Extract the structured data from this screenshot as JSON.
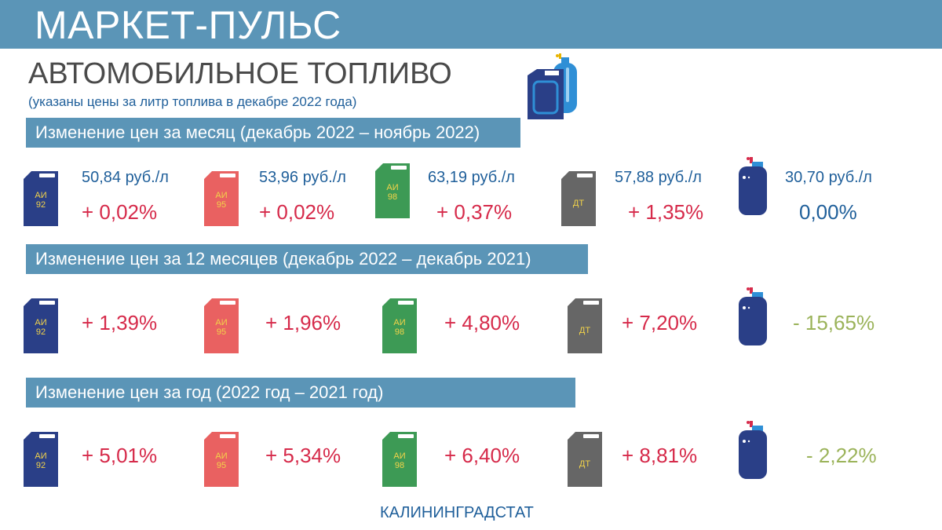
{
  "header": {
    "title": "МАРКЕТ-ПУЛЬС",
    "subtitle": "АВТОМОБИЛЬНОЕ ТОПЛИВО",
    "note": "(указаны цены за литр топлива в декабре 2022 года)"
  },
  "fuels": [
    {
      "label_top": "АИ",
      "label_bottom": "92",
      "color": "#2a3f87"
    },
    {
      "label_top": "АИ",
      "label_bottom": "95",
      "color": "#e96161"
    },
    {
      "label_top": "АИ",
      "label_bottom": "98",
      "color": "#3d9a55"
    },
    {
      "label_top": "ДТ",
      "label_bottom": "",
      "color": "#666666"
    },
    {
      "label_top": "",
      "label_bottom": "",
      "color": "#2a3f87"
    }
  ],
  "sections": {
    "month": {
      "title": "Изменение цен за месяц (декабрь 2022 – ноябрь 2022)",
      "items": [
        {
          "price": "50,84 руб./л",
          "change": "+ 0,02%"
        },
        {
          "price": "53,96 руб./л",
          "change": "+ 0,02%"
        },
        {
          "price": "63,19 руб./л",
          "change": "+ 0,37%"
        },
        {
          "price": "57,88 руб./л",
          "change": "+ 1,35%"
        },
        {
          "price": "30,70 руб./л",
          "change": "0,00%"
        }
      ]
    },
    "twelve_months": {
      "title": "Изменение цен за 12 месяцев (декабрь 2022 – декабрь 2021)",
      "items": [
        {
          "change": "+ 1,39%"
        },
        {
          "change": "+ 1,96%"
        },
        {
          "change": "+ 4,80%"
        },
        {
          "change": "+ 7,20%"
        },
        {
          "change": "- 15,65%"
        }
      ]
    },
    "year": {
      "title": "Изменение цен за год (2022 год – 2021 год)",
      "items": [
        {
          "change": "+ 5,01%"
        },
        {
          "change": "+ 5,34%"
        },
        {
          "change": "+ 6,40%"
        },
        {
          "change": "+ 8,81%"
        },
        {
          "change": "- 2,22%"
        }
      ]
    }
  },
  "footer": {
    "source": "КАЛИНИНГРАДСТАТ"
  },
  "colors": {
    "bar": "#5b95b7",
    "increase": "#d62a4a",
    "neutral": "#1f5f9a",
    "decrease": "#9bb35a"
  },
  "icons": [
    "jerrycan-icon",
    "gas-cylinder-icon"
  ]
}
